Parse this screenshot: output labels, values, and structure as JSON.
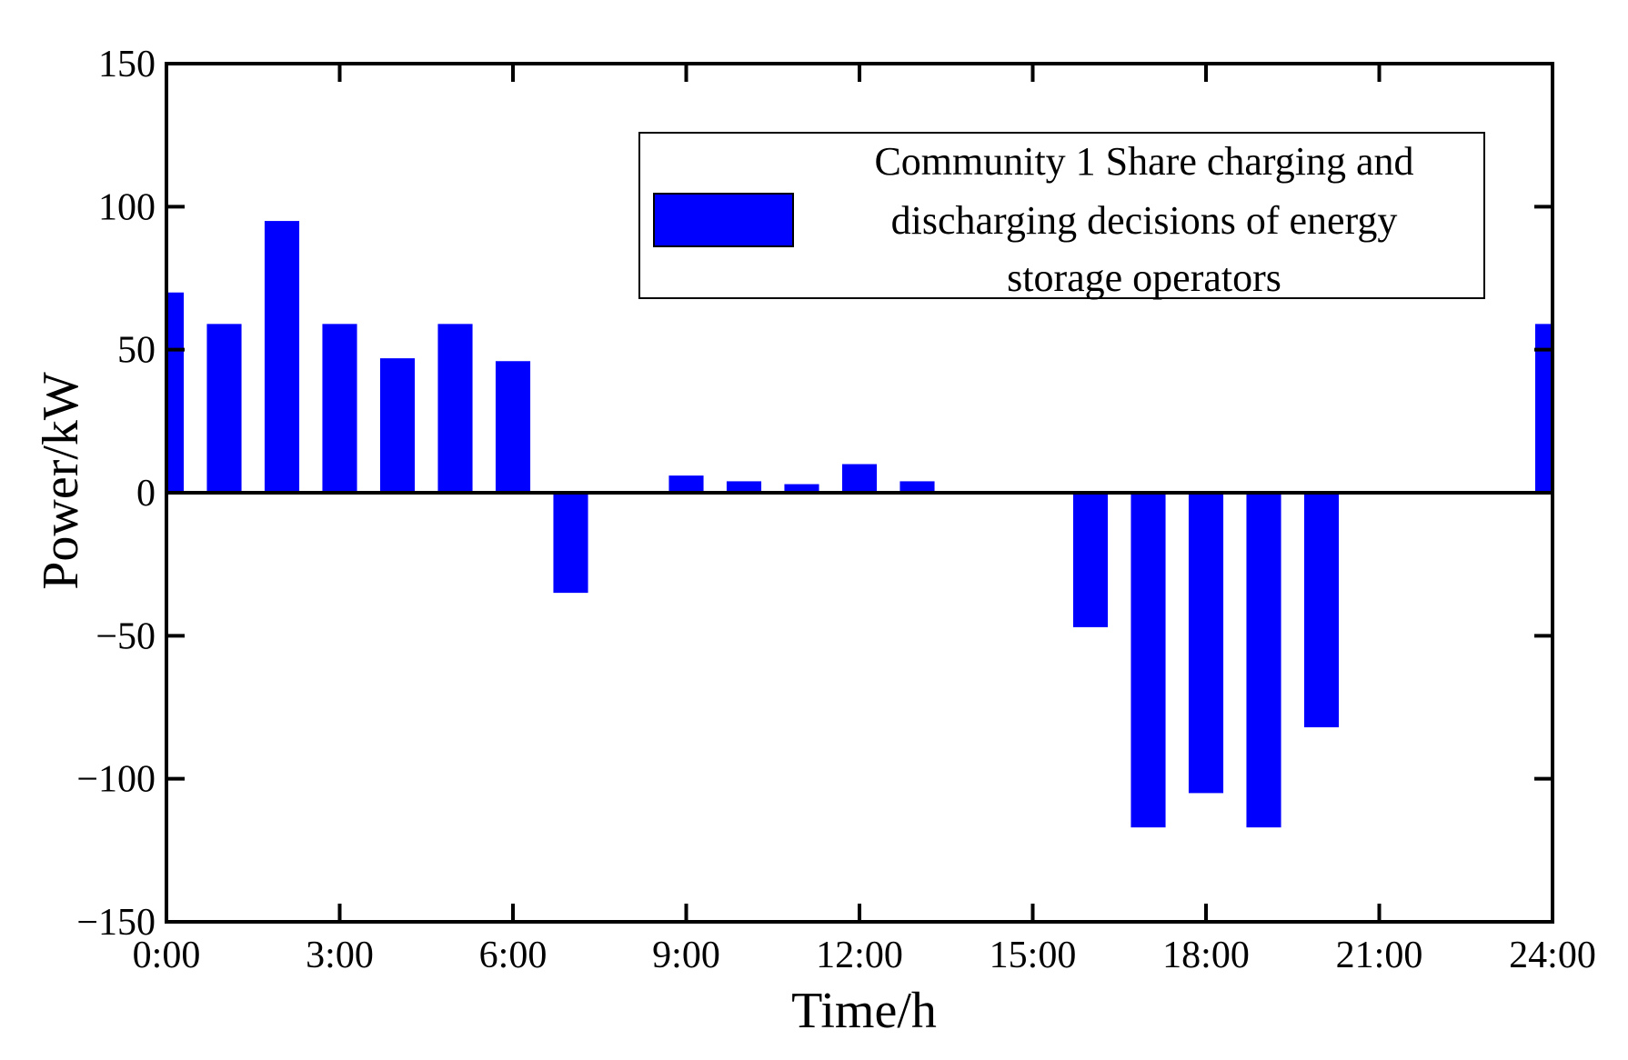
{
  "chart_data": {
    "type": "bar",
    "title": "",
    "xlabel": "Time/h",
    "ylabel": "Power/kW",
    "ylim": [
      -150,
      150
    ],
    "xlim": [
      0,
      24
    ],
    "yticks": [
      {
        "value": 150,
        "label": "150"
      },
      {
        "value": 100,
        "label": "100"
      },
      {
        "value": 50,
        "label": "50"
      },
      {
        "value": 0,
        "label": "0"
      },
      {
        "value": -50,
        "label": "−50"
      },
      {
        "value": -100,
        "label": "−100"
      },
      {
        "value": -150,
        "label": "−150"
      }
    ],
    "xticks": [
      {
        "value": 0,
        "label": "0:00"
      },
      {
        "value": 3,
        "label": "3:00"
      },
      {
        "value": 6,
        "label": "6:00"
      },
      {
        "value": 9,
        "label": "9:00"
      },
      {
        "value": 12,
        "label": "12:00"
      },
      {
        "value": 15,
        "label": "15:00"
      },
      {
        "value": 18,
        "label": "18:00"
      },
      {
        "value": 21,
        "label": "21:00"
      },
      {
        "value": 24,
        "label": "24:00"
      }
    ],
    "x": [
      0,
      1,
      2,
      3,
      4,
      5,
      6,
      7,
      8,
      9,
      10,
      11,
      12,
      13,
      14,
      15,
      16,
      17,
      18,
      19,
      20,
      21,
      22,
      23,
      24
    ],
    "series": [
      {
        "name": "Community 1 Share charging and discharging decisions of energy storage operators",
        "legend_lines": [
          "Community 1 Share charging and",
          "discharging decisions of energy",
          "storage operators"
        ],
        "color": "#0000ff",
        "values": [
          70,
          59,
          95,
          59,
          47,
          59,
          46,
          -35,
          0,
          6,
          4,
          3,
          10,
          4,
          0,
          0,
          -47,
          -117,
          -105,
          -117,
          -82,
          0,
          0,
          0,
          59
        ]
      }
    ],
    "grid": false,
    "legend_position": "top-right"
  }
}
